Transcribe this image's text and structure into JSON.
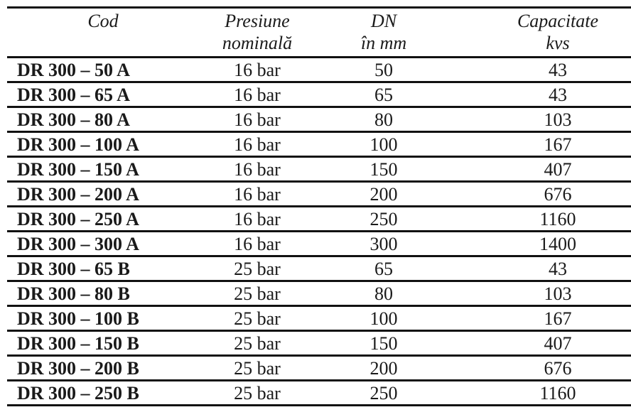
{
  "table": {
    "headers": [
      [
        "Cod"
      ],
      [
        "Presiune",
        "nominală"
      ],
      [
        "DN",
        "în mm"
      ],
      [
        "Capacitate",
        "kvs"
      ]
    ],
    "rows": [
      [
        "DR 300 – 50 A",
        "16 bar",
        "50",
        "43"
      ],
      [
        "DR 300 – 65 A",
        "16 bar",
        "65",
        "43"
      ],
      [
        "DR 300 – 80 A",
        "16 bar",
        "80",
        "103"
      ],
      [
        "DR 300 – 100 A",
        "16 bar",
        "100",
        "167"
      ],
      [
        "DR 300 – 150 A",
        "16 bar",
        "150",
        "407"
      ],
      [
        "DR 300 – 200 A",
        "16 bar",
        "200",
        "676"
      ],
      [
        "DR 300 – 250 A",
        "16 bar",
        "250",
        "1160"
      ],
      [
        "DR 300 – 300 A",
        "16 bar",
        "300",
        "1400"
      ],
      [
        "DR 300 – 65 B",
        "25 bar",
        "65",
        "43"
      ],
      [
        "DR 300 – 80 B",
        "25 bar",
        "80",
        "103"
      ],
      [
        "DR 300 – 100 B",
        "25 bar",
        "100",
        "167"
      ],
      [
        "DR 300 – 150 B",
        "25 bar",
        "150",
        "407"
      ],
      [
        "DR 300 – 200 B",
        "25 bar",
        "200",
        "676"
      ],
      [
        "DR 300 – 250 B",
        "25 bar",
        "250",
        "1160"
      ]
    ]
  }
}
